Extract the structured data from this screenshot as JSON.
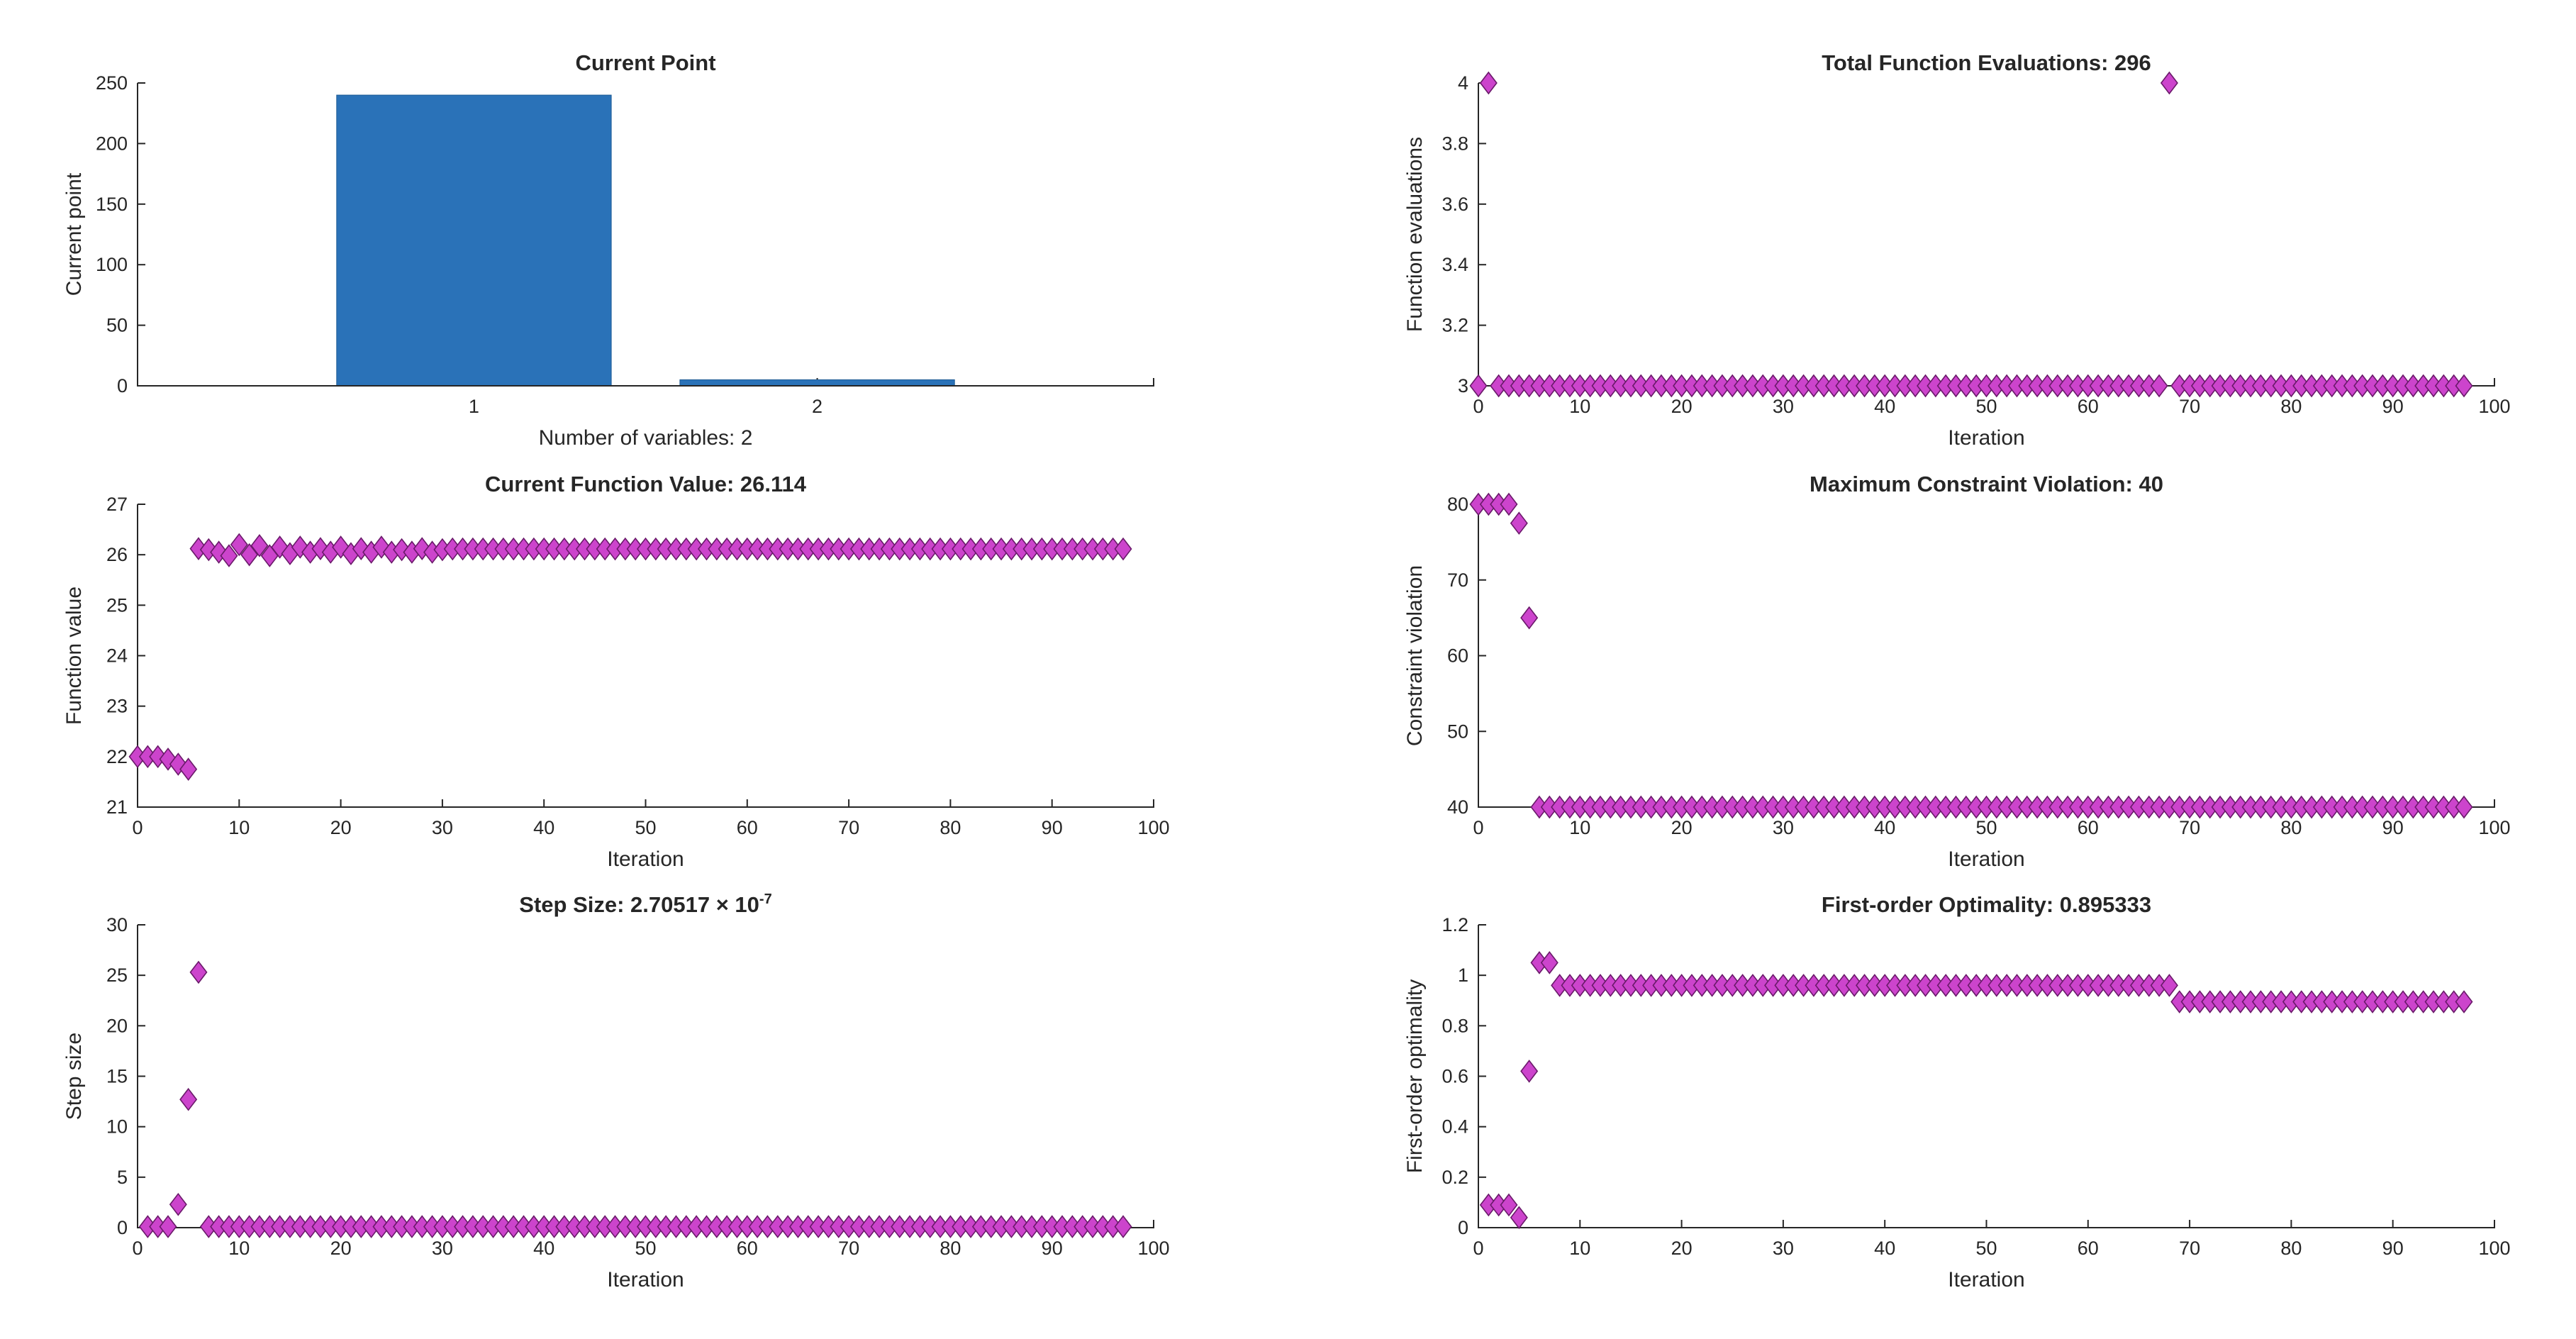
{
  "chart_data": [
    {
      "id": "current_point",
      "type": "bar",
      "title": "Current Point",
      "xlabel": "Number of variables: 2",
      "ylabel": "Current point",
      "categories": [
        "1",
        "2"
      ],
      "values": [
        240,
        5
      ],
      "xlim": [
        0.02,
        2.98
      ],
      "ylim": [
        0,
        250
      ],
      "xticks": [
        1,
        2
      ],
      "yticks": [
        0,
        50,
        100,
        150,
        200,
        250
      ],
      "color": "#2a72b8"
    },
    {
      "id": "total_function_evaluations",
      "type": "scatter",
      "title": "Total Function Evaluations: 296",
      "xlabel": "Iteration",
      "ylabel": "Function evaluations",
      "xlim": [
        0,
        100
      ],
      "ylim": [
        3,
        4
      ],
      "xticks": [
        0,
        10,
        20,
        30,
        40,
        50,
        60,
        70,
        80,
        90,
        100
      ],
      "yticks": [
        3,
        3.2,
        3.4,
        3.6,
        3.8,
        4
      ],
      "marker_fill": "#cc44cc",
      "marker_edge": "#6a1a6a",
      "x_max_iter": 97,
      "default_y": 3,
      "special_points": [
        [
          1,
          4
        ],
        [
          68,
          4
        ]
      ]
    },
    {
      "id": "current_function_value",
      "type": "scatter",
      "title": "Current Function Value: 26.114",
      "xlabel": "Iteration",
      "ylabel": "Function value",
      "xlim": [
        0,
        100
      ],
      "ylim": [
        21,
        27
      ],
      "xticks": [
        0,
        10,
        20,
        30,
        40,
        50,
        60,
        70,
        80,
        90,
        100
      ],
      "yticks": [
        21,
        22,
        23,
        24,
        25,
        26,
        27
      ],
      "marker_fill": "#cc44cc",
      "marker_edge": "#6a1a6a",
      "x_max_iter": 97,
      "default_y": 26.114,
      "special_points": [
        [
          0,
          22.0
        ],
        [
          1,
          22.0
        ],
        [
          2,
          22.0
        ],
        [
          3,
          21.95
        ],
        [
          4,
          21.85
        ],
        [
          5,
          21.75
        ],
        [
          6,
          26.12
        ],
        [
          7,
          26.1
        ],
        [
          8,
          26.05
        ],
        [
          9,
          25.98
        ],
        [
          10,
          26.2
        ],
        [
          11,
          26.0
        ],
        [
          12,
          26.18
        ],
        [
          13,
          25.98
        ],
        [
          14,
          26.15
        ],
        [
          15,
          26.02
        ],
        [
          16,
          26.15
        ],
        [
          17,
          26.05
        ],
        [
          18,
          26.12
        ],
        [
          19,
          26.05
        ],
        [
          20,
          26.15
        ],
        [
          21,
          26.02
        ],
        [
          22,
          26.12
        ],
        [
          23,
          26.05
        ],
        [
          24,
          26.15
        ],
        [
          25,
          26.05
        ],
        [
          26,
          26.1
        ],
        [
          27,
          26.05
        ],
        [
          28,
          26.12
        ],
        [
          29,
          26.05
        ],
        [
          30,
          26.1
        ]
      ]
    },
    {
      "id": "maximum_constraint_violation",
      "type": "scatter",
      "title": "Maximum Constraint Violation: 40",
      "xlabel": "Iteration",
      "ylabel": "Constraint violation",
      "xlim": [
        0,
        100
      ],
      "ylim": [
        40,
        80
      ],
      "xticks": [
        0,
        10,
        20,
        30,
        40,
        50,
        60,
        70,
        80,
        90,
        100
      ],
      "yticks": [
        40,
        50,
        60,
        70,
        80
      ],
      "marker_fill": "#cc44cc",
      "marker_edge": "#6a1a6a",
      "x_max_iter": 97,
      "default_y": 40,
      "special_points": [
        [
          0,
          80
        ],
        [
          1,
          80
        ],
        [
          2,
          80
        ],
        [
          3,
          80
        ],
        [
          4,
          77.5
        ],
        [
          5,
          65
        ]
      ]
    },
    {
      "id": "step_size",
      "type": "scatter",
      "title": "Step Size: 2.70517 × 10",
      "title_exponent": "-7",
      "xlabel": "Iteration",
      "ylabel": "Step size",
      "xlim": [
        0,
        100
      ],
      "ylim": [
        0,
        30
      ],
      "xticks": [
        0,
        10,
        20,
        30,
        40,
        50,
        60,
        70,
        80,
        90,
        100
      ],
      "yticks": [
        0,
        5,
        10,
        15,
        20,
        25,
        30
      ],
      "marker_fill": "#cc44cc",
      "marker_edge": "#6a1a6a",
      "x_min_iter": 1,
      "x_max_iter": 97,
      "default_y": 0.1,
      "special_points": [
        [
          4,
          2.3
        ],
        [
          5,
          12.7
        ],
        [
          6,
          25.3
        ]
      ]
    },
    {
      "id": "first_order_optimality",
      "type": "scatter",
      "title": "First-order Optimality: 0.895333",
      "xlabel": "Iteration",
      "ylabel": "First-order optimality",
      "xlim": [
        0,
        100
      ],
      "ylim": [
        0,
        1.2
      ],
      "xticks": [
        0,
        10,
        20,
        30,
        40,
        50,
        60,
        70,
        80,
        90,
        100
      ],
      "yticks": [
        0,
        0.2,
        0.4,
        0.6,
        0.8,
        1,
        1.2
      ],
      "marker_fill": "#cc44cc",
      "marker_edge": "#6a1a6a",
      "x_min_iter": 1,
      "x_max_iter": 97,
      "segments": [
        [
          8,
          68,
          0.96
        ],
        [
          69,
          97,
          0.895
        ]
      ],
      "special_points": [
        [
          1,
          0.09
        ],
        [
          2,
          0.09
        ],
        [
          3,
          0.09
        ],
        [
          4,
          0.04
        ],
        [
          5,
          0.62
        ],
        [
          6,
          1.05
        ],
        [
          7,
          1.05
        ]
      ]
    }
  ]
}
